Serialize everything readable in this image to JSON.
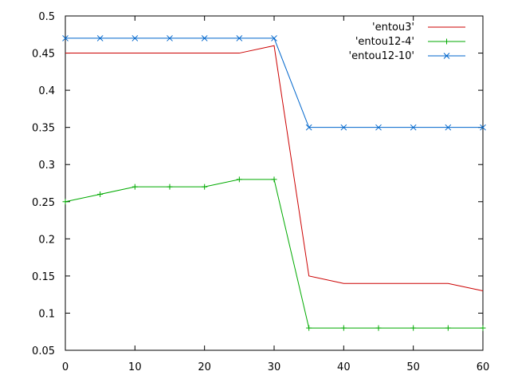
{
  "chart_data": {
    "type": "line",
    "title": "",
    "xlabel": "",
    "ylabel": "",
    "xlim": [
      0,
      60
    ],
    "ylim": [
      0.05,
      0.5
    ],
    "x_ticks": [
      "0",
      "10",
      "20",
      "30",
      "40",
      "50",
      "60"
    ],
    "y_ticks": [
      "0.05",
      "0.1",
      "0.15",
      "0.2",
      "0.25",
      "0.3",
      "0.35",
      "0.4",
      "0.45",
      "0.5"
    ],
    "grid": false,
    "legend_position": "top-right",
    "series": [
      {
        "name": "'entou3'",
        "color": "#cc0000",
        "marker": "none",
        "x": [
          0,
          5,
          10,
          15,
          20,
          25,
          30,
          35,
          40,
          45,
          50,
          55,
          60
        ],
        "y": [
          0.45,
          0.45,
          0.45,
          0.45,
          0.45,
          0.45,
          0.46,
          0.15,
          0.14,
          0.14,
          0.14,
          0.14,
          0.13
        ]
      },
      {
        "name": "'entou12-4'",
        "color": "#00aa00",
        "marker": "plus",
        "x": [
          0,
          5,
          10,
          15,
          20,
          25,
          30,
          35,
          40,
          45,
          50,
          55,
          60
        ],
        "y": [
          0.25,
          0.26,
          0.27,
          0.27,
          0.27,
          0.28,
          0.28,
          0.08,
          0.08,
          0.08,
          0.08,
          0.08,
          0.08
        ]
      },
      {
        "name": "'entou12-10'",
        "color": "#0066cc",
        "marker": "cross",
        "x": [
          0,
          5,
          10,
          15,
          20,
          25,
          30,
          35,
          40,
          45,
          50,
          55,
          60
        ],
        "y": [
          0.47,
          0.47,
          0.47,
          0.47,
          0.47,
          0.47,
          0.47,
          0.35,
          0.35,
          0.35,
          0.35,
          0.35,
          0.35
        ]
      }
    ]
  }
}
